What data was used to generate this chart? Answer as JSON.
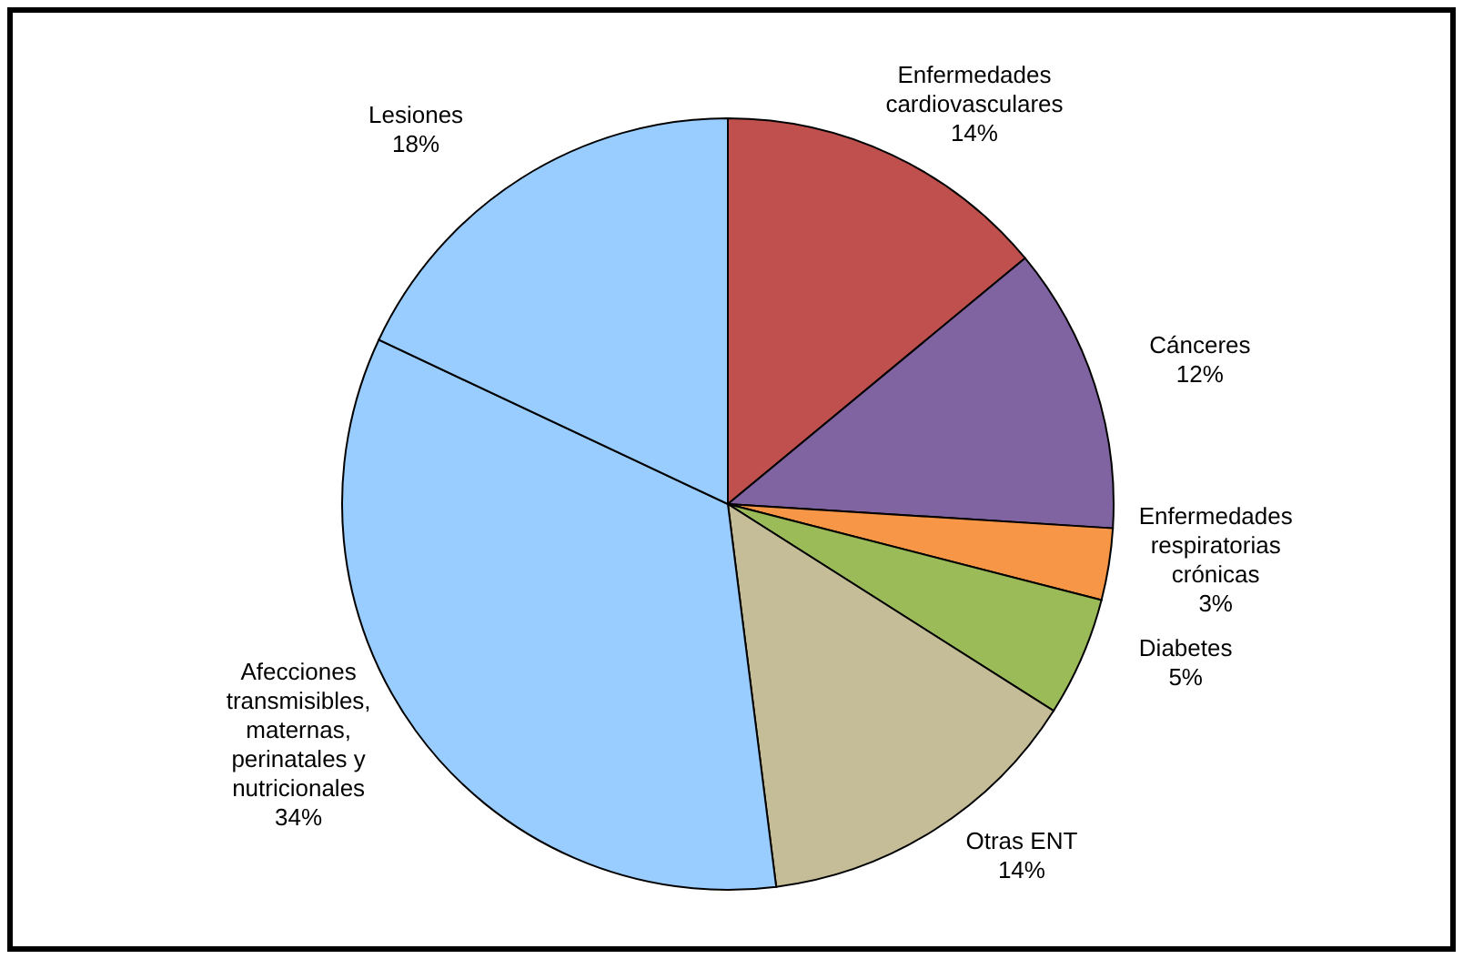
{
  "chart_data": {
    "type": "pie",
    "categories": [
      "Enfermedades cardiovasculares",
      "Cánceres",
      "Enfermedades respiratorias crónicas",
      "Diabetes",
      "Otras ENT",
      "Afecciones transmisibles, maternas, perinatales y nutricionales",
      "Lesiones"
    ],
    "values": [
      14,
      12,
      3,
      5,
      14,
      34,
      18
    ],
    "value_labels": [
      "14%",
      "12%",
      "3%",
      "5%",
      "14%",
      "34%",
      "18%"
    ],
    "colors": [
      "#c0504d",
      "#8064a2",
      "#f79646",
      "#9bbb59",
      "#c4bd97",
      "#99ccff",
      "#99ccff"
    ]
  }
}
